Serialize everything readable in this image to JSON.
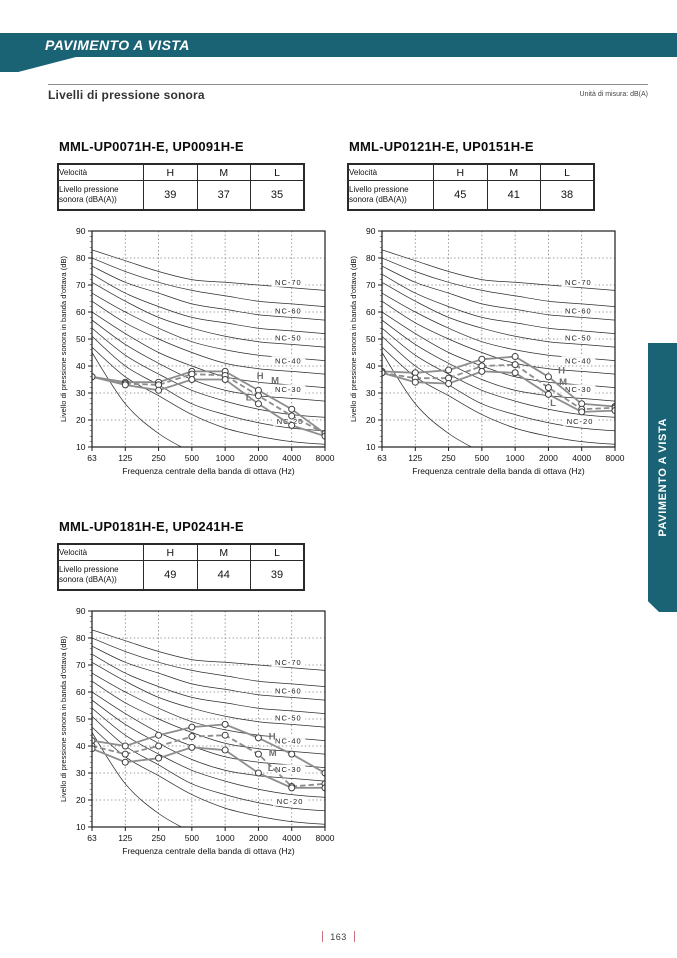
{
  "page": {
    "banner_title": "PAVIMENTO A VISTA",
    "section_heading": "Livelli di pressione sonora",
    "units_note": "Unità di misura: dB(A)",
    "side_tab_label": "PAVIMENTO A VISTA",
    "page_number": "163",
    "accent_color": "#1a6375",
    "footer_bar_color": "#c97580"
  },
  "table_labels": {
    "velocity": "Velocità",
    "pressure": "Livello pressione sonora (dBA(A))",
    "speeds": [
      "H",
      "M",
      "L"
    ]
  },
  "sections": [
    {
      "title": "MML-UP0071H-E, UP0091H-E",
      "values": [
        "39",
        "37",
        "35"
      ]
    },
    {
      "title": "MML-UP0121H-E, UP0151H-E",
      "values": [
        "45",
        "41",
        "38"
      ]
    },
    {
      "title": "MML-UP0181H-E, UP0241H-E",
      "values": [
        "49",
        "44",
        "39"
      ]
    }
  ],
  "chart_data": {
    "shared": {
      "type": "line",
      "x_categories": [
        "63",
        "125",
        "250",
        "500",
        "1000",
        "2000",
        "4000",
        "8000"
      ],
      "xlabel": "Frequenza centrale della banda di ottava (Hz)",
      "ylabel": "Livello di pressione sonora in banda d'ottava (dB)",
      "ylim": [
        10,
        90
      ],
      "y_ticks": [
        90,
        80,
        70,
        60,
        50,
        40,
        30,
        20,
        10
      ],
      "grid": true,
      "legend_position": "inline-labels",
      "series_color": "#8d8d8d",
      "marker": "circle-white",
      "nc_reference_curves": [
        {
          "name": "NC-70",
          "values": [
            83,
            79,
            75,
            72,
            71,
            70,
            69,
            68
          ]
        },
        {
          "name": "NC-65",
          "values": [
            80,
            75,
            71,
            68,
            66,
            64,
            63,
            62
          ]
        },
        {
          "name": "NC-60",
          "values": [
            77,
            71,
            67,
            63,
            61,
            59,
            58,
            57
          ]
        },
        {
          "name": "NC-55",
          "values": [
            74,
            67,
            62,
            58,
            56,
            54,
            53,
            52
          ]
        },
        {
          "name": "NC-50",
          "values": [
            71,
            64,
            58,
            54,
            51,
            49,
            48,
            47
          ]
        },
        {
          "name": "NC-45",
          "values": [
            67,
            60,
            54,
            49,
            46,
            44,
            43,
            42
          ]
        },
        {
          "name": "NC-40",
          "values": [
            64,
            56,
            50,
            45,
            41,
            39,
            38,
            37
          ]
        },
        {
          "name": "NC-35",
          "values": [
            60,
            52,
            45,
            40,
            36,
            34,
            33,
            32
          ]
        },
        {
          "name": "NC-30",
          "values": [
            57,
            48,
            41,
            35,
            31,
            29,
            28,
            27
          ]
        },
        {
          "name": "NC-25",
          "values": [
            54,
            44,
            37,
            31,
            27,
            24,
            22,
            21
          ]
        },
        {
          "name": "NC-20",
          "values": [
            51,
            40,
            33,
            26,
            22,
            19,
            17,
            16
          ]
        },
        {
          "name": "NC-15",
          "values": [
            47,
            36,
            29,
            22,
            17,
            14,
            12,
            11
          ]
        }
      ],
      "threshold_curve": {
        "x_indices": [
          0,
          1,
          2,
          3
        ],
        "values": [
          45,
          26,
          15,
          8
        ]
      },
      "nc_labels": [
        {
          "text": "NC-70",
          "x": 5.9,
          "y": 71
        },
        {
          "text": "NC-60",
          "x": 5.9,
          "y": 60.5
        },
        {
          "text": "NC-50",
          "x": 5.9,
          "y": 50.5
        },
        {
          "text": "NC-40",
          "x": 5.9,
          "y": 42
        },
        {
          "text": "NC-30",
          "x": 5.9,
          "y": 31.5
        },
        {
          "text": "NC-20",
          "x": 5.95,
          "y": 19.5
        }
      ]
    },
    "charts": [
      {
        "model_title": "MML-UP0071H-E, UP0091H-E",
        "series": [
          {
            "name": "H",
            "style": "solid",
            "values": [
              36,
              34,
              34,
              38,
              38,
              31,
              24,
              15
            ],
            "label_pos": {
              "x": 4.95,
              "y": 35.2
            }
          },
          {
            "name": "M",
            "style": "dashed",
            "values": [
              36,
              33.5,
              33,
              37,
              36.5,
              29,
              21.5,
              15
            ],
            "label_pos": {
              "x": 5.38,
              "y": 33.6
            }
          },
          {
            "name": "L",
            "style": "solid",
            "values": [
              36,
              33,
              31,
              35,
              35,
              26,
              18,
              14
            ],
            "label_pos": {
              "x": 4.62,
              "y": 27.2
            }
          }
        ]
      },
      {
        "model_title": "MML-UP0121H-E, UP0151H-E",
        "series": [
          {
            "name": "H",
            "style": "solid",
            "values": [
              38,
              37.5,
              38.5,
              42.5,
              43.5,
              36,
              26,
              25
            ],
            "label_pos": {
              "x": 5.29,
              "y": 37.3
            }
          },
          {
            "name": "M",
            "style": "dashed",
            "values": [
              37.5,
              35.5,
              35.5,
              40,
              40.5,
              32,
              24,
              24.5
            ],
            "label_pos": {
              "x": 5.32,
              "y": 33.0
            }
          },
          {
            "name": "L",
            "style": "solid",
            "values": [
              37.5,
              34,
              33.5,
              38,
              37.5,
              29.5,
              23,
              23.5
            ],
            "label_pos": {
              "x": 5.05,
              "y": 25.2
            }
          }
        ]
      },
      {
        "model_title": "MML-UP0181H-E, UP0241H-E",
        "series": [
          {
            "name": "H",
            "style": "solid",
            "values": [
              42,
              40,
              44,
              47,
              48,
              43,
              37,
              30
            ],
            "label_pos": {
              "x": 5.31,
              "y": 42.4
            }
          },
          {
            "name": "M",
            "style": "dashed",
            "values": [
              40,
              37,
              40,
              43.5,
              44,
              37,
              25,
              26
            ],
            "label_pos": {
              "x": 5.31,
              "y": 36.3
            }
          },
          {
            "name": "L",
            "style": "solid",
            "values": [
              39,
              34,
              35.5,
              39.5,
              38.5,
              30,
              24.5,
              24.5
            ],
            "label_pos": {
              "x": 5.28,
              "y": 30.7
            }
          }
        ]
      }
    ]
  }
}
